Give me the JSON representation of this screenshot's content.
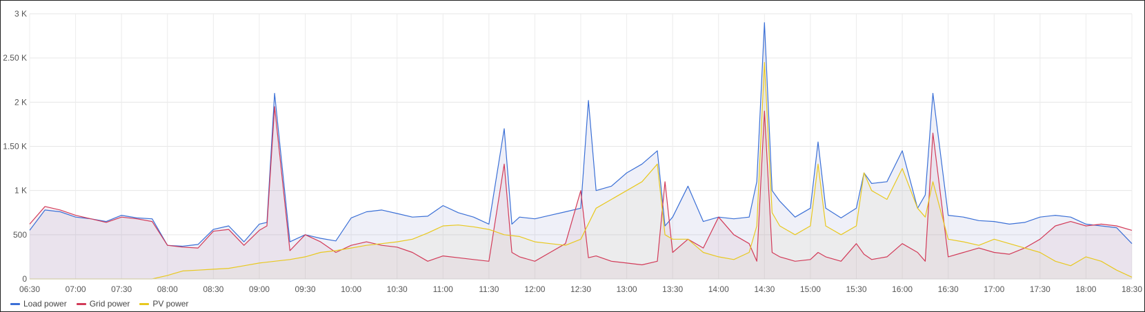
{
  "chart_data": {
    "type": "line",
    "title": "",
    "xlabel": "",
    "ylabel": "",
    "ylim": [
      0,
      3000
    ],
    "yticks": [
      0,
      500,
      1000,
      1500,
      2000,
      2500,
      3000
    ],
    "ytick_labels": [
      "0",
      "500",
      "1 K",
      "1.50 K",
      "2 K",
      "2.50 K",
      "3 K"
    ],
    "xlim": [
      "06:30",
      "18:30"
    ],
    "xtick_labels": [
      "06:30",
      "07:00",
      "07:30",
      "08:00",
      "08:30",
      "09:00",
      "09:30",
      "10:00",
      "10:30",
      "11:00",
      "11:30",
      "12:00",
      "12:30",
      "13:00",
      "13:30",
      "14:00",
      "14:30",
      "15:00",
      "15:30",
      "16:00",
      "16:30",
      "17:00",
      "17:30",
      "18:00",
      "18:30"
    ],
    "grid": true,
    "legend_position": "bottom-left",
    "series": [
      {
        "name": "Load power",
        "color": "#3a6fd6",
        "x": [
          "06:30",
          "06:40",
          "06:50",
          "07:00",
          "07:10",
          "07:20",
          "07:30",
          "07:40",
          "07:50",
          "08:00",
          "08:10",
          "08:20",
          "08:30",
          "08:40",
          "08:50",
          "09:00",
          "09:05",
          "09:10",
          "09:20",
          "09:30",
          "09:40",
          "09:50",
          "10:00",
          "10:10",
          "10:20",
          "10:30",
          "10:40",
          "10:50",
          "11:00",
          "11:10",
          "11:20",
          "11:30",
          "11:40",
          "11:45",
          "11:50",
          "12:00",
          "12:10",
          "12:20",
          "12:30",
          "12:35",
          "12:40",
          "12:50",
          "13:00",
          "13:10",
          "13:20",
          "13:25",
          "13:30",
          "13:40",
          "13:50",
          "14:00",
          "14:10",
          "14:20",
          "14:25",
          "14:30",
          "14:35",
          "14:40",
          "14:50",
          "15:00",
          "15:05",
          "15:10",
          "15:20",
          "15:30",
          "15:35",
          "15:40",
          "15:50",
          "16:00",
          "16:10",
          "16:15",
          "16:20",
          "16:30",
          "16:40",
          "16:50",
          "17:00",
          "17:10",
          "17:20",
          "17:30",
          "17:40",
          "17:50",
          "18:00",
          "18:10",
          "18:20",
          "18:30"
        ],
        "values": [
          550,
          780,
          760,
          700,
          680,
          650,
          720,
          690,
          680,
          380,
          370,
          390,
          560,
          600,
          420,
          620,
          640,
          2100,
          420,
          500,
          460,
          430,
          690,
          760,
          780,
          740,
          700,
          710,
          830,
          750,
          700,
          620,
          1700,
          620,
          700,
          680,
          720,
          760,
          800,
          2020,
          1000,
          1050,
          1200,
          1300,
          1450,
          600,
          700,
          1050,
          650,
          700,
          680,
          700,
          1100,
          2900,
          1000,
          880,
          700,
          800,
          1550,
          800,
          690,
          800,
          1200,
          1080,
          1100,
          1450,
          800,
          950,
          2100,
          720,
          700,
          660,
          650,
          620,
          640,
          700,
          720,
          700,
          620,
          600,
          580,
          400
        ]
      },
      {
        "name": "Grid power",
        "color": "#d23a58",
        "x": [
          "06:30",
          "06:40",
          "06:50",
          "07:00",
          "07:10",
          "07:20",
          "07:30",
          "07:40",
          "07:50",
          "08:00",
          "08:10",
          "08:20",
          "08:30",
          "08:40",
          "08:50",
          "09:00",
          "09:05",
          "09:10",
          "09:20",
          "09:30",
          "09:40",
          "09:50",
          "10:00",
          "10:10",
          "10:20",
          "10:30",
          "10:40",
          "10:50",
          "11:00",
          "11:10",
          "11:20",
          "11:30",
          "11:40",
          "11:45",
          "11:50",
          "12:00",
          "12:10",
          "12:20",
          "12:30",
          "12:35",
          "12:40",
          "12:50",
          "13:00",
          "13:10",
          "13:20",
          "13:25",
          "13:30",
          "13:40",
          "13:50",
          "14:00",
          "14:10",
          "14:20",
          "14:25",
          "14:30",
          "14:35",
          "14:40",
          "14:50",
          "15:00",
          "15:05",
          "15:10",
          "15:20",
          "15:30",
          "15:35",
          "15:40",
          "15:50",
          "16:00",
          "16:10",
          "16:15",
          "16:20",
          "16:30",
          "16:40",
          "16:50",
          "17:00",
          "17:10",
          "17:20",
          "17:30",
          "17:40",
          "17:50",
          "18:00",
          "18:10",
          "18:20",
          "18:30"
        ],
        "values": [
          620,
          820,
          780,
          720,
          680,
          640,
          700,
          680,
          650,
          380,
          360,
          350,
          540,
          560,
          380,
          550,
          600,
          1950,
          320,
          500,
          420,
          300,
          380,
          420,
          380,
          360,
          300,
          200,
          260,
          240,
          220,
          200,
          1300,
          300,
          250,
          200,
          300,
          400,
          1000,
          240,
          260,
          200,
          180,
          160,
          200,
          1100,
          300,
          450,
          350,
          700,
          500,
          400,
          200,
          1900,
          300,
          250,
          200,
          220,
          300,
          250,
          200,
          400,
          280,
          220,
          250,
          400,
          300,
          200,
          1650,
          250,
          300,
          350,
          300,
          280,
          350,
          450,
          600,
          650,
          600,
          620,
          600,
          550
        ]
      },
      {
        "name": "PV power",
        "color": "#e8c81e",
        "x": [
          "06:30",
          "07:00",
          "07:30",
          "07:50",
          "08:00",
          "08:10",
          "08:20",
          "08:30",
          "08:40",
          "08:50",
          "09:00",
          "09:10",
          "09:20",
          "09:30",
          "09:40",
          "09:50",
          "10:00",
          "10:10",
          "10:20",
          "10:30",
          "10:40",
          "10:50",
          "11:00",
          "11:10",
          "11:20",
          "11:30",
          "11:40",
          "11:50",
          "12:00",
          "12:10",
          "12:20",
          "12:30",
          "12:40",
          "12:50",
          "13:00",
          "13:10",
          "13:20",
          "13:25",
          "13:30",
          "13:40",
          "13:50",
          "14:00",
          "14:10",
          "14:20",
          "14:25",
          "14:30",
          "14:35",
          "14:40",
          "14:50",
          "15:00",
          "15:05",
          "15:10",
          "15:20",
          "15:30",
          "15:35",
          "15:40",
          "15:50",
          "16:00",
          "16:10",
          "16:15",
          "16:20",
          "16:30",
          "16:40",
          "16:50",
          "17:00",
          "17:10",
          "17:20",
          "17:30",
          "17:40",
          "17:50",
          "18:00",
          "18:10",
          "18:20",
          "18:30"
        ],
        "values": [
          0,
          0,
          0,
          0,
          40,
          90,
          100,
          110,
          120,
          150,
          180,
          200,
          220,
          250,
          300,
          320,
          350,
          380,
          400,
          420,
          450,
          520,
          600,
          610,
          590,
          560,
          500,
          480,
          420,
          400,
          380,
          450,
          800,
          900,
          1000,
          1100,
          1300,
          500,
          450,
          450,
          300,
          250,
          220,
          300,
          600,
          2450,
          750,
          600,
          500,
          600,
          1300,
          600,
          500,
          600,
          1200,
          1000,
          900,
          1250,
          800,
          700,
          1100,
          450,
          420,
          380,
          450,
          400,
          350,
          300,
          200,
          150,
          250,
          200,
          100,
          20
        ]
      }
    ]
  }
}
